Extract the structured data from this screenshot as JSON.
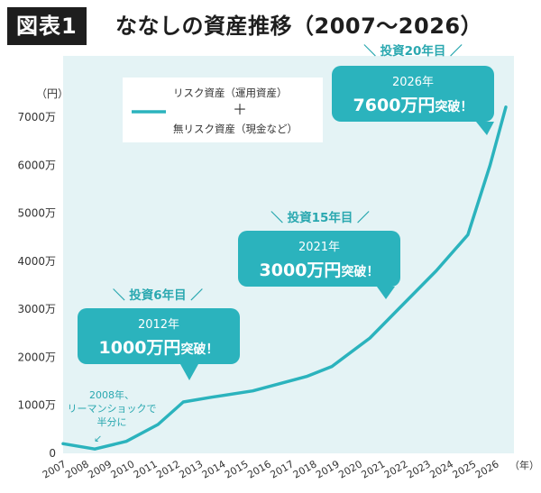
{
  "header": {
    "badge": "図表1",
    "title": "ななしの資産推移（2007〜2026）"
  },
  "colors": {
    "plot_bg": "#e4f3f5",
    "line": "#2bb3bd",
    "callout": "#2bb3bd",
    "accent_text": "#2aa8b0"
  },
  "chart_data": {
    "type": "line",
    "title": "ななしの資産推移（2007〜2026）",
    "xlabel": "（年）",
    "ylabel": "（円）",
    "x": [
      2007,
      2008,
      2009,
      2010,
      2011,
      2012,
      2013,
      2014,
      2015,
      2016,
      2017,
      2018,
      2019,
      2020,
      2021,
      2022,
      2023,
      2024,
      2025,
      2026
    ],
    "ylim": [
      0,
      8000
    ],
    "y_ticks": [
      0,
      1000,
      2000,
      3000,
      4000,
      5000,
      6000,
      7000
    ],
    "y_tick_labels": [
      "0",
      "1000万",
      "2000万",
      "3000万",
      "4000万",
      "5000万",
      "6000万",
      "7000万"
    ],
    "x_tick_labels": [
      "2007",
      "2008",
      "2009",
      "2010",
      "2011",
      "2012",
      "2013",
      "2014",
      "2015",
      "2016",
      "2017",
      "2018",
      "2019",
      "2020",
      "2021",
      "2022",
      "2023",
      "2024",
      "2025",
      "2026"
    ],
    "series": [
      {
        "name": "リスク資産（運用資産）＋無リスク資産（現金など）",
        "points": [
          [
            2007.0,
            200
          ],
          [
            2008.0,
            90
          ],
          [
            2009.0,
            250
          ],
          [
            2010.0,
            600
          ],
          [
            2010.8,
            1070
          ],
          [
            2011.7,
            1170
          ],
          [
            2013.0,
            1300
          ],
          [
            2014.7,
            1600
          ],
          [
            2015.5,
            1810
          ],
          [
            2016.7,
            2400
          ],
          [
            2017.6,
            3000
          ],
          [
            2018.8,
            3800
          ],
          [
            2019.8,
            4550
          ],
          [
            2020.5,
            6000
          ],
          [
            2021.0,
            7210
          ]
        ]
      }
    ],
    "legend": {
      "position": "top-center",
      "line1": "リスク資産（運用資産）",
      "plus": "＋",
      "line2": "無リスク資産（現金など）"
    },
    "annotations": [
      {
        "kind": "note",
        "lines": [
          "2008年、",
          "リーマンショックで",
          "半分に"
        ],
        "arrow": "↙"
      },
      {
        "kind": "callout",
        "label": "＼ 投資6年目 ／",
        "year": "2012年",
        "amount": "1000万円",
        "suffix": "突破！"
      },
      {
        "kind": "callout",
        "label": "＼ 投資15年目 ／",
        "year": "2021年",
        "amount": "3000万円",
        "suffix": "突破！"
      },
      {
        "kind": "callout",
        "label": "＼ 投資20年目 ／",
        "year": "2026年",
        "amount": "7600万円",
        "suffix": "突破！"
      }
    ]
  }
}
